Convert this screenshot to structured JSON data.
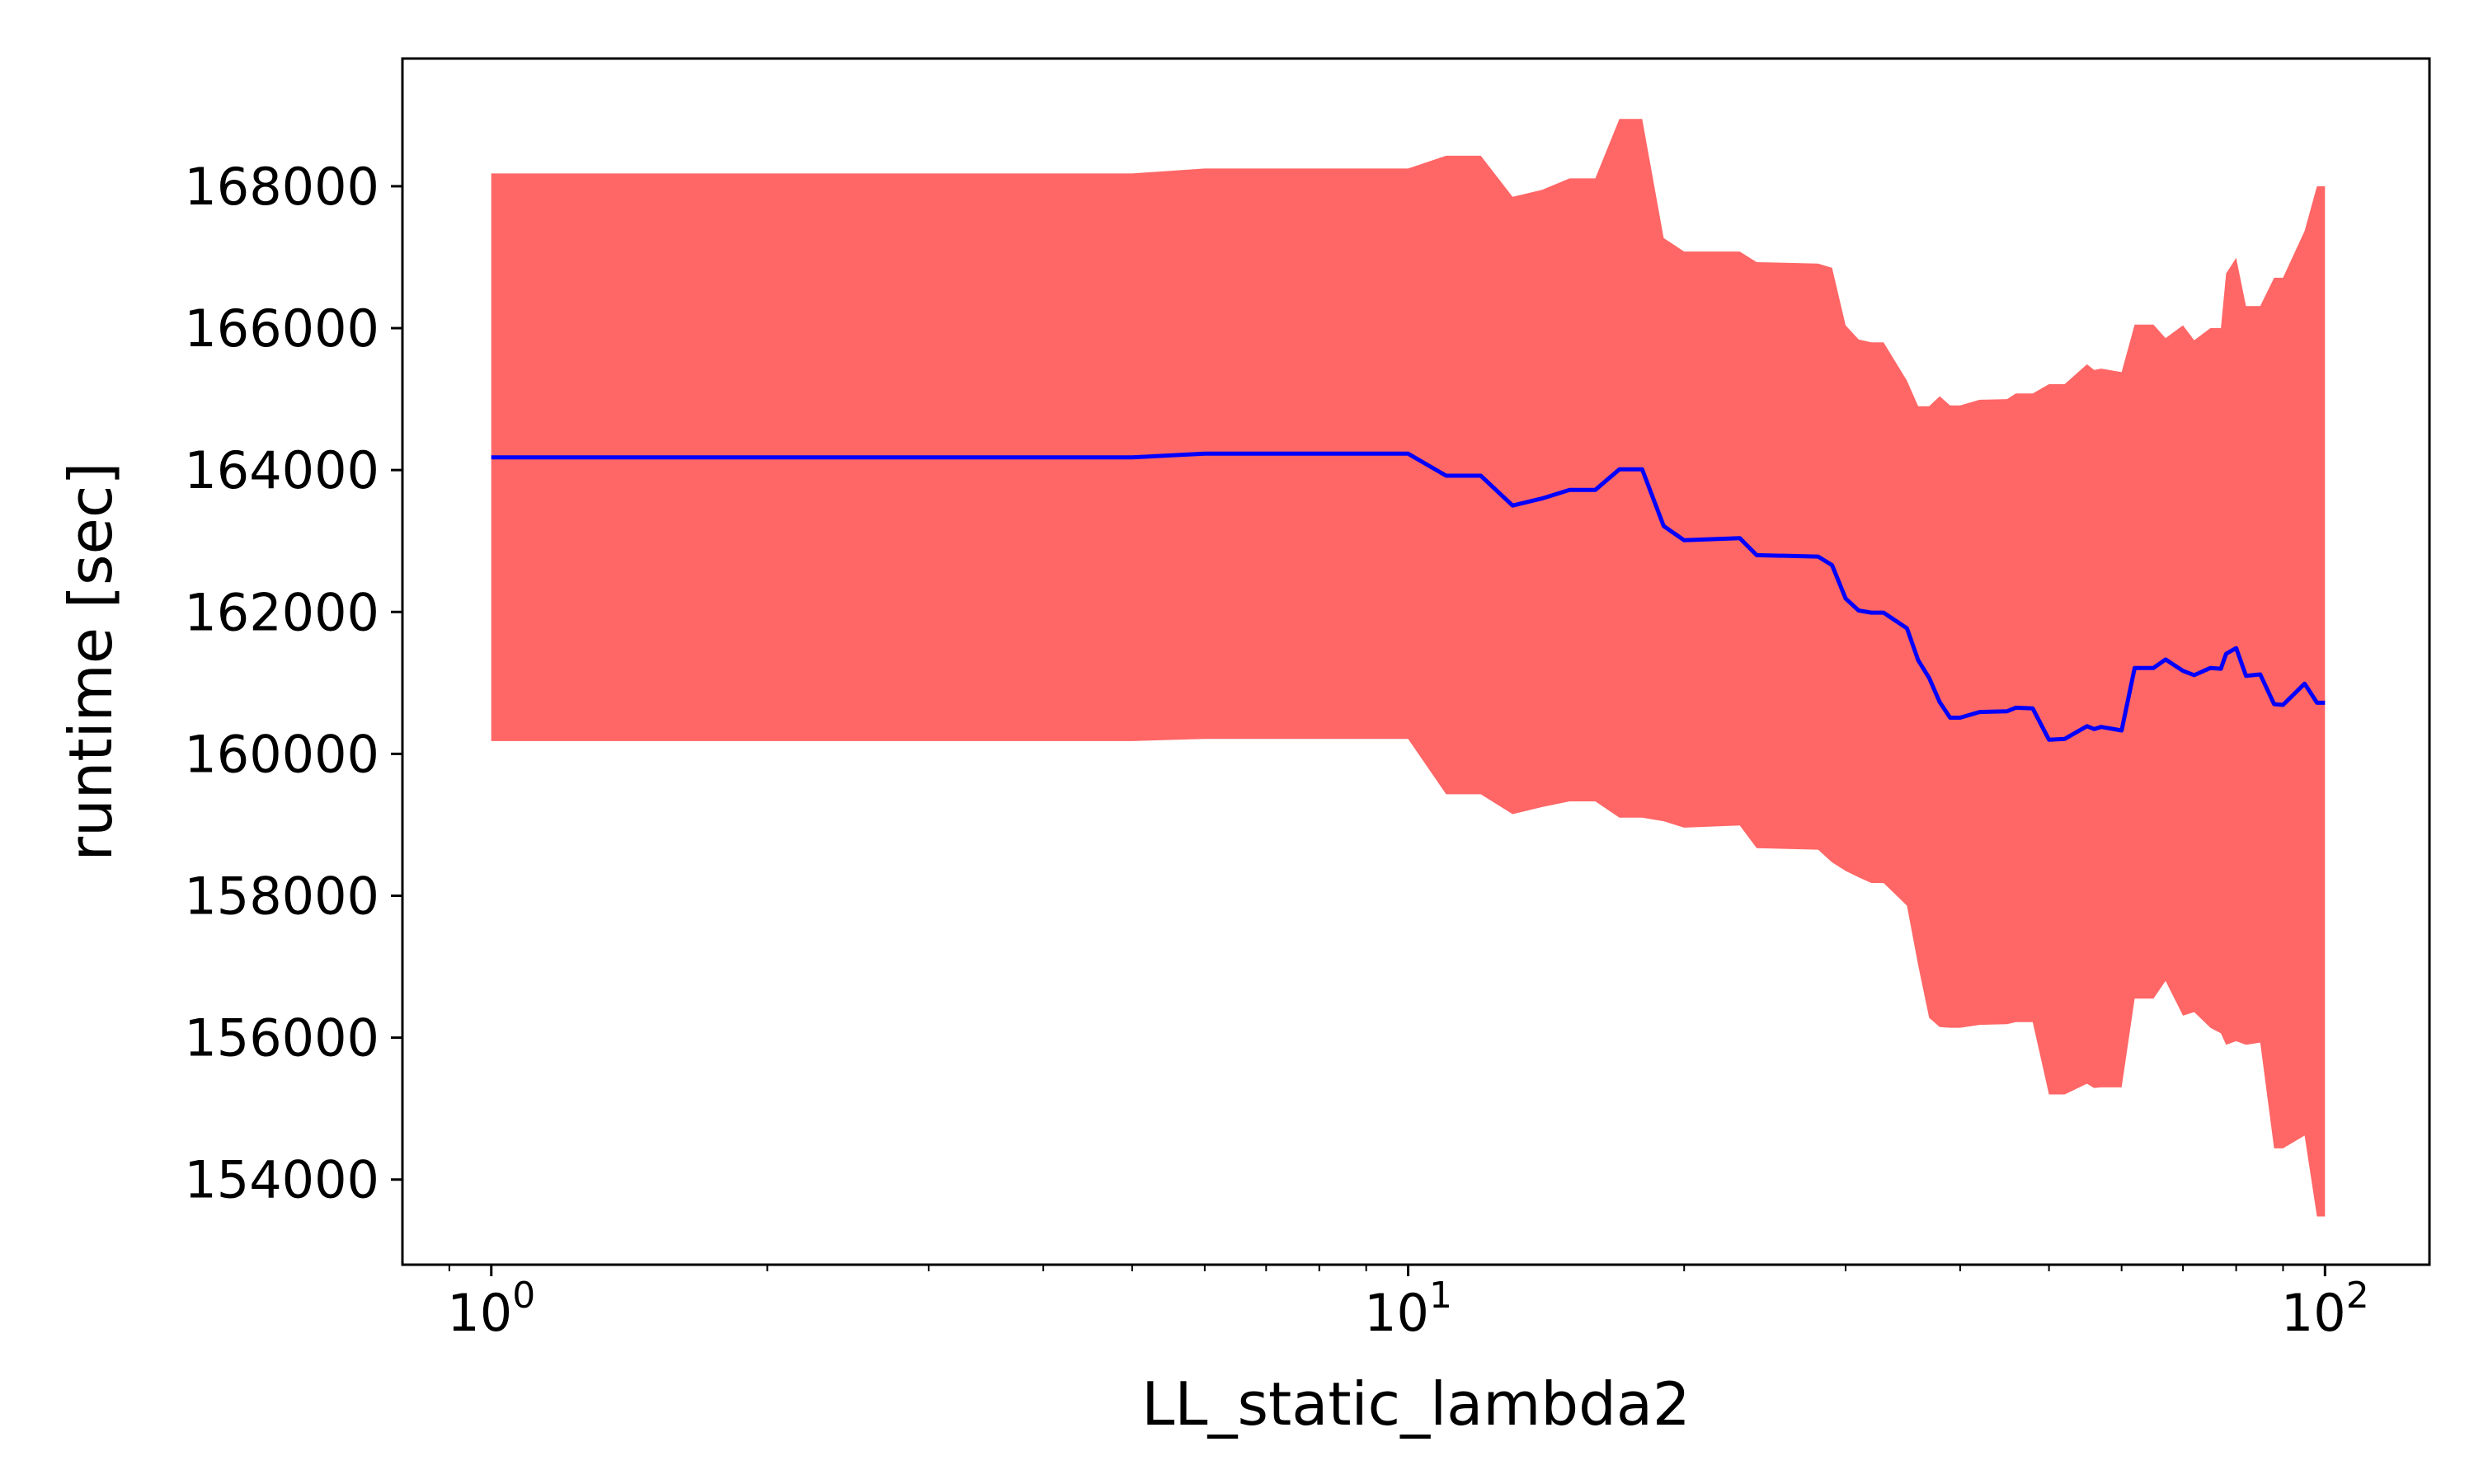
{
  "chart_data": {
    "type": "area",
    "title": "",
    "xlabel": "LL_static_lambda2",
    "ylabel": "runtime [sec]",
    "xscale": "log",
    "xlim": [
      0.8,
      130
    ],
    "ylim": [
      152800,
      169800
    ],
    "grid": false,
    "legend": "none",
    "xticks": [
      {
        "value": 1,
        "base": "10",
        "exp": "0"
      },
      {
        "value": 10,
        "base": "10",
        "exp": "1"
      },
      {
        "value": 100,
        "base": "10",
        "exp": "2"
      }
    ],
    "yticks": [
      154000,
      156000,
      158000,
      160000,
      162000,
      164000,
      166000,
      168000
    ],
    "ytick_labels": [
      "154000",
      "156000",
      "158000",
      "160000",
      "162000",
      "164000",
      "166000",
      "168000"
    ],
    "colors": {
      "mean_line": "#0000ff",
      "band_fill": "#ff6666",
      "axes": "#000000"
    },
    "series": [
      {
        "role": "mean",
        "x": [
          1,
          5,
          6,
          10,
          11,
          12,
          13,
          14,
          15,
          16,
          17,
          18,
          19,
          20,
          23,
          24,
          28,
          29,
          30,
          31,
          32,
          33,
          35,
          36,
          37,
          38,
          39,
          40,
          42,
          45,
          46,
          48,
          50,
          52,
          55,
          56,
          57,
          60,
          62,
          65,
          67,
          70,
          72,
          75,
          77,
          78,
          80,
          82,
          85,
          88,
          90,
          95,
          98,
          100
        ],
        "y": [
          164180,
          164180,
          164230,
          164230,
          163920,
          163920,
          163500,
          163600,
          163720,
          163720,
          164010,
          164010,
          163210,
          163010,
          163040,
          162800,
          162780,
          162660,
          162190,
          162020,
          161990,
          161990,
          161770,
          161320,
          161070,
          160730,
          160510,
          160510,
          160590,
          160600,
          160650,
          160640,
          160200,
          160210,
          160390,
          160350,
          160380,
          160330,
          161210,
          161210,
          161330,
          161170,
          161110,
          161210,
          161200,
          161410,
          161490,
          161100,
          161120,
          160700,
          160690,
          160990,
          160720,
          160720
        ]
      },
      {
        "role": "upper bound",
        "x": [
          1,
          5,
          6,
          10,
          11,
          12,
          13,
          14,
          15,
          16,
          17,
          18,
          19,
          20,
          23,
          24,
          28,
          29,
          30,
          31,
          32,
          33,
          35,
          36,
          37,
          38,
          39,
          40,
          42,
          45,
          46,
          48,
          50,
          52,
          55,
          56,
          57,
          60,
          62,
          65,
          67,
          70,
          72,
          75,
          77,
          78,
          80,
          82,
          85,
          88,
          90,
          95,
          98,
          100
        ],
        "y": [
          168180,
          168180,
          168250,
          168250,
          168430,
          168430,
          167850,
          167950,
          168110,
          168110,
          168950,
          168950,
          167270,
          167080,
          167080,
          166930,
          166910,
          166850,
          166040,
          165840,
          165800,
          165800,
          165260,
          164900,
          164900,
          165040,
          164910,
          164910,
          164990,
          165000,
          165080,
          165080,
          165210,
          165210,
          165490,
          165410,
          165430,
          165380,
          166050,
          166050,
          165860,
          166040,
          165830,
          166000,
          166000,
          166770,
          166990,
          166310,
          166310,
          166710,
          166710,
          167370,
          168000,
          168000
        ]
      },
      {
        "role": "lower bound",
        "x": [
          1,
          5,
          6,
          10,
          11,
          12,
          13,
          14,
          15,
          16,
          17,
          18,
          19,
          20,
          23,
          24,
          28,
          29,
          30,
          31,
          32,
          33,
          35,
          36,
          37,
          38,
          39,
          40,
          42,
          45,
          46,
          48,
          50,
          52,
          55,
          56,
          57,
          60,
          62,
          65,
          67,
          70,
          72,
          75,
          77,
          78,
          80,
          82,
          85,
          88,
          90,
          95,
          98,
          100
        ],
        "y": [
          160180,
          160180,
          160210,
          160210,
          159430,
          159430,
          159150,
          159250,
          159330,
          159330,
          159100,
          159100,
          159050,
          158960,
          158990,
          158670,
          158650,
          158470,
          158350,
          158260,
          158180,
          158180,
          157860,
          157020,
          156280,
          156150,
          156140,
          156140,
          156180,
          156190,
          156220,
          156220,
          155200,
          155200,
          155350,
          155290,
          155300,
          155300,
          156550,
          156550,
          156800,
          156310,
          156360,
          156140,
          156060,
          155900,
          155950,
          155900,
          155930,
          154440,
          154440,
          154620,
          153480,
          153480
        ]
      }
    ]
  }
}
